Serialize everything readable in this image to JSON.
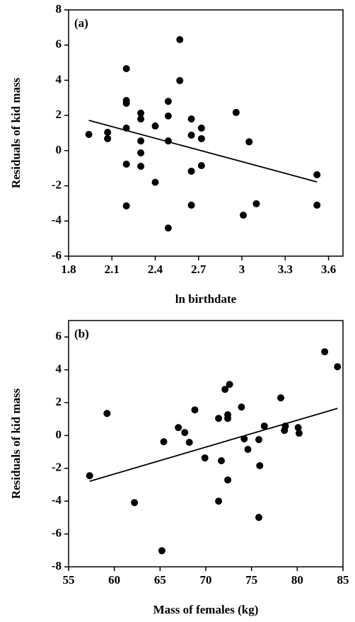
{
  "chart_data": [
    {
      "type": "scatter",
      "panel_label": "(a)",
      "x_label": "ln birthdate",
      "y_label": "Residuals of kid mass",
      "color": "#000000",
      "x": [
        1.94,
        2.07,
        2.07,
        2.2,
        2.2,
        2.2,
        2.2,
        2.2,
        2.2,
        2.3,
        2.3,
        2.3,
        2.3,
        2.3,
        2.4,
        2.4,
        2.49,
        2.49,
        2.49,
        2.49,
        2.57,
        2.57,
        2.65,
        2.65,
        2.65,
        2.65,
        2.72,
        2.72,
        2.72,
        2.96,
        3.01,
        3.05,
        3.1,
        3.52,
        3.52
      ],
      "values": [
        0.92,
        1.04,
        0.68,
        4.66,
        2.85,
        2.69,
        1.28,
        -0.77,
        -3.14,
        2.13,
        1.8,
        0.55,
        -0.13,
        -0.89,
        1.4,
        -1.8,
        2.8,
        1.97,
        0.55,
        -4.4,
        6.31,
        3.98,
        1.8,
        0.88,
        -1.17,
        -3.1,
        1.28,
        0.68,
        -0.85,
        2.17,
        -3.67,
        0.5,
        -3.02,
        -1.37,
        -3.1
      ],
      "trend_x": [
        1.94,
        3.52
      ],
      "trend_values": [
        1.72,
        -1.78
      ],
      "xlim": [
        1.8,
        3.7
      ],
      "ylim": [
        -6,
        8
      ],
      "xticks": [
        1.8,
        2.1,
        2.4,
        2.7,
        3,
        3.3,
        3.6
      ],
      "yticks": [
        -6,
        -4,
        -2,
        0,
        2,
        4,
        6,
        8
      ]
    },
    {
      "type": "scatter",
      "panel_label": "(b)",
      "x_label": "Mass of females (kg)",
      "y_label": "Residuals of kid mass",
      "color": "#000000",
      "x": [
        57.3,
        59.2,
        62.2,
        65.4,
        65.2,
        67.0,
        67.7,
        68.2,
        68.8,
        69.9,
        71.4,
        71.4,
        71.7,
        72.1,
        72.4,
        72.4,
        72.4,
        72.6,
        73.9,
        74.2,
        74.6,
        75.8,
        75.8,
        75.9,
        76.4,
        78.2,
        78.6,
        78.7,
        80.1,
        80.2,
        83.0,
        84.4
      ],
      "values": [
        -2.45,
        1.34,
        -4.09,
        -0.38,
        -7.02,
        0.48,
        0.18,
        -0.42,
        1.56,
        -1.37,
        1.04,
        -4.0,
        -1.54,
        2.81,
        1.26,
        1.04,
        -2.71,
        3.11,
        1.73,
        -0.21,
        -0.85,
        -0.25,
        -4.99,
        -1.84,
        0.57,
        2.29,
        0.31,
        0.57,
        0.48,
        0.14,
        5.1,
        4.19
      ],
      "trend_x": [
        57.3,
        84.4
      ],
      "trend_values": [
        -2.79,
        1.65
      ],
      "xlim": [
        55,
        85
      ],
      "ylim": [
        -8,
        7
      ],
      "xticks": [
        55,
        60,
        65,
        70,
        75,
        80,
        85
      ],
      "yticks": [
        -8,
        -6,
        -4,
        -2,
        0,
        2,
        4,
        6
      ]
    }
  ]
}
